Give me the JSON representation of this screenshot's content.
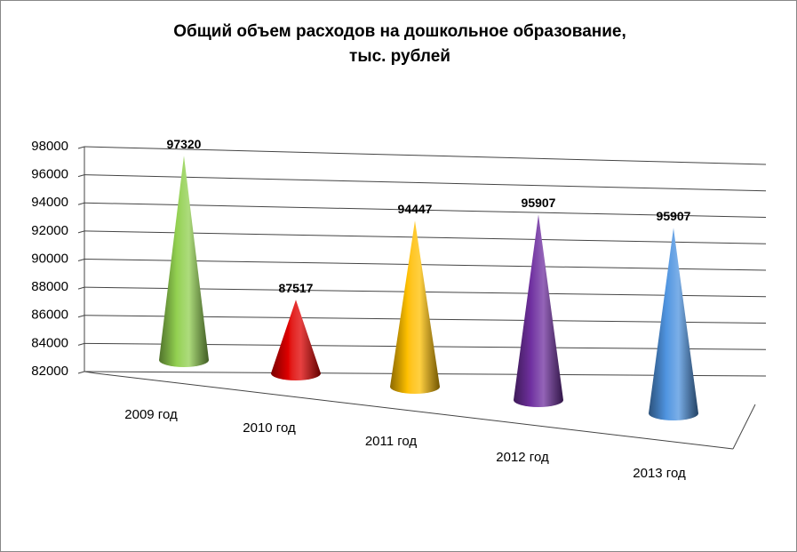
{
  "chart_data": {
    "type": "cone",
    "title": [
      "Общий объем расходов на дошкольное образование,",
      "тыс. рублей"
    ],
    "categories": [
      "2009 год",
      "2010 год",
      "2011 год",
      "2012 год",
      "2013 год"
    ],
    "values": [
      97320,
      87517,
      94447,
      95907,
      95907
    ],
    "colors": [
      "#92d050",
      "#e00000",
      "#ffc000",
      "#7030a0",
      "#4f94e0"
    ],
    "ylim": [
      82000,
      98000
    ],
    "yticks": [
      82000,
      84000,
      86000,
      88000,
      90000,
      92000,
      94000,
      96000,
      98000
    ],
    "grid": true
  }
}
